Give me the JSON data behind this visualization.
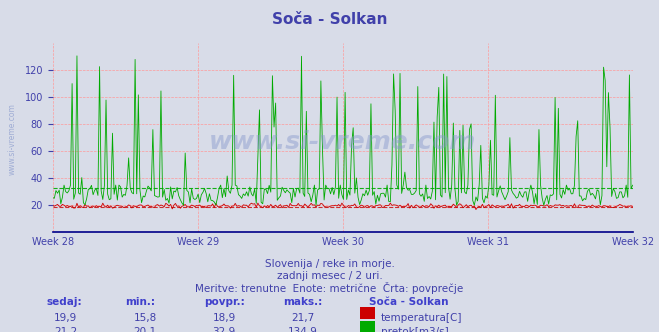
{
  "title": "Soča - Solkan",
  "title_color": "#4040aa",
  "bg_color": "#d8dce8",
  "plot_bg_color": "#d8dce8",
  "grid_color_h": "#ff9999",
  "grid_color_v": "#ff9999",
  "temp_color": "#cc0000",
  "flow_color": "#00aa00",
  "bottom_line_color": "#000088",
  "temp_min": 15.8,
  "temp_max": 21.7,
  "temp_avg": 18.9,
  "temp_current": 19.9,
  "flow_min": 20.1,
  "flow_max": 134.9,
  "flow_avg": 32.9,
  "flow_current": 21.2,
  "ylim": [
    0,
    140
  ],
  "yticks": [
    20,
    40,
    60,
    80,
    100,
    120
  ],
  "xlabel_color": "#4040aa",
  "week_labels": [
    "Week 28",
    "Week 29",
    "Week 30",
    "Week 31",
    "Week 32"
  ],
  "subtitle1": "Slovenija / reke in morje.",
  "subtitle2": "zadnji mesec / 2 uri.",
  "subtitle3": "Meritve: trenutne  Enote: metrične  Črta: povprečje",
  "subtitle_color": "#4040aa",
  "table_header_color": "#4040cc",
  "table_value_color": "#4040aa",
  "watermark": "www.si-vreme.com",
  "watermark_color": "#8899cc",
  "side_watermark_color": "#8899cc",
  "num_points": 360,
  "temp_base": 19.5,
  "flow_base": 28.0
}
